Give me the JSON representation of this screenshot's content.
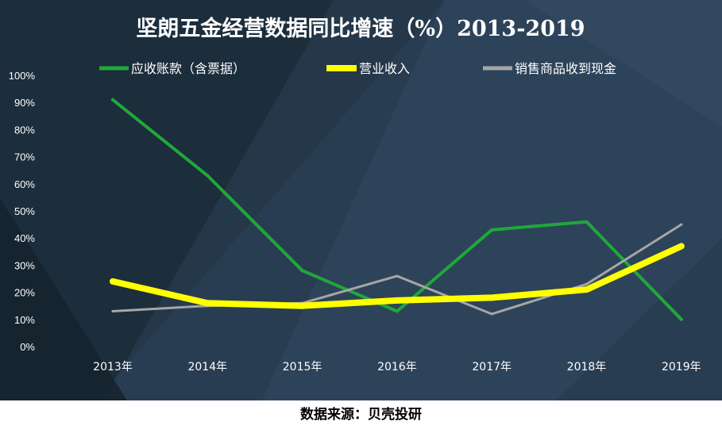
{
  "source_note": "数据来源：贝壳投研",
  "chart_data": {
    "type": "line",
    "title": "坚朗五金经营数据同比增速（%）2013-2019",
    "categories": [
      "2013年",
      "2014年",
      "2015年",
      "2016年",
      "2017年",
      "2018年",
      "2019年"
    ],
    "y_ticks": [
      "0%",
      "10%",
      "20%",
      "30%",
      "40%",
      "50%",
      "60%",
      "70%",
      "80%",
      "90%",
      "100%"
    ],
    "ylim": [
      0,
      100
    ],
    "grid": false,
    "legend_position": "top",
    "series": [
      {
        "name": "应收账款（含票据）",
        "color": "#1fa83a",
        "values": [
          91,
          63,
          28,
          13,
          43,
          46,
          10
        ]
      },
      {
        "name": "营业收入",
        "color": "#ffff00",
        "values": [
          24,
          16,
          15,
          17,
          18,
          21,
          37
        ]
      },
      {
        "name": "销售商品收到现金",
        "color": "#a6a6a6",
        "values": [
          13,
          15,
          16,
          26,
          12,
          23,
          45
        ]
      }
    ]
  }
}
